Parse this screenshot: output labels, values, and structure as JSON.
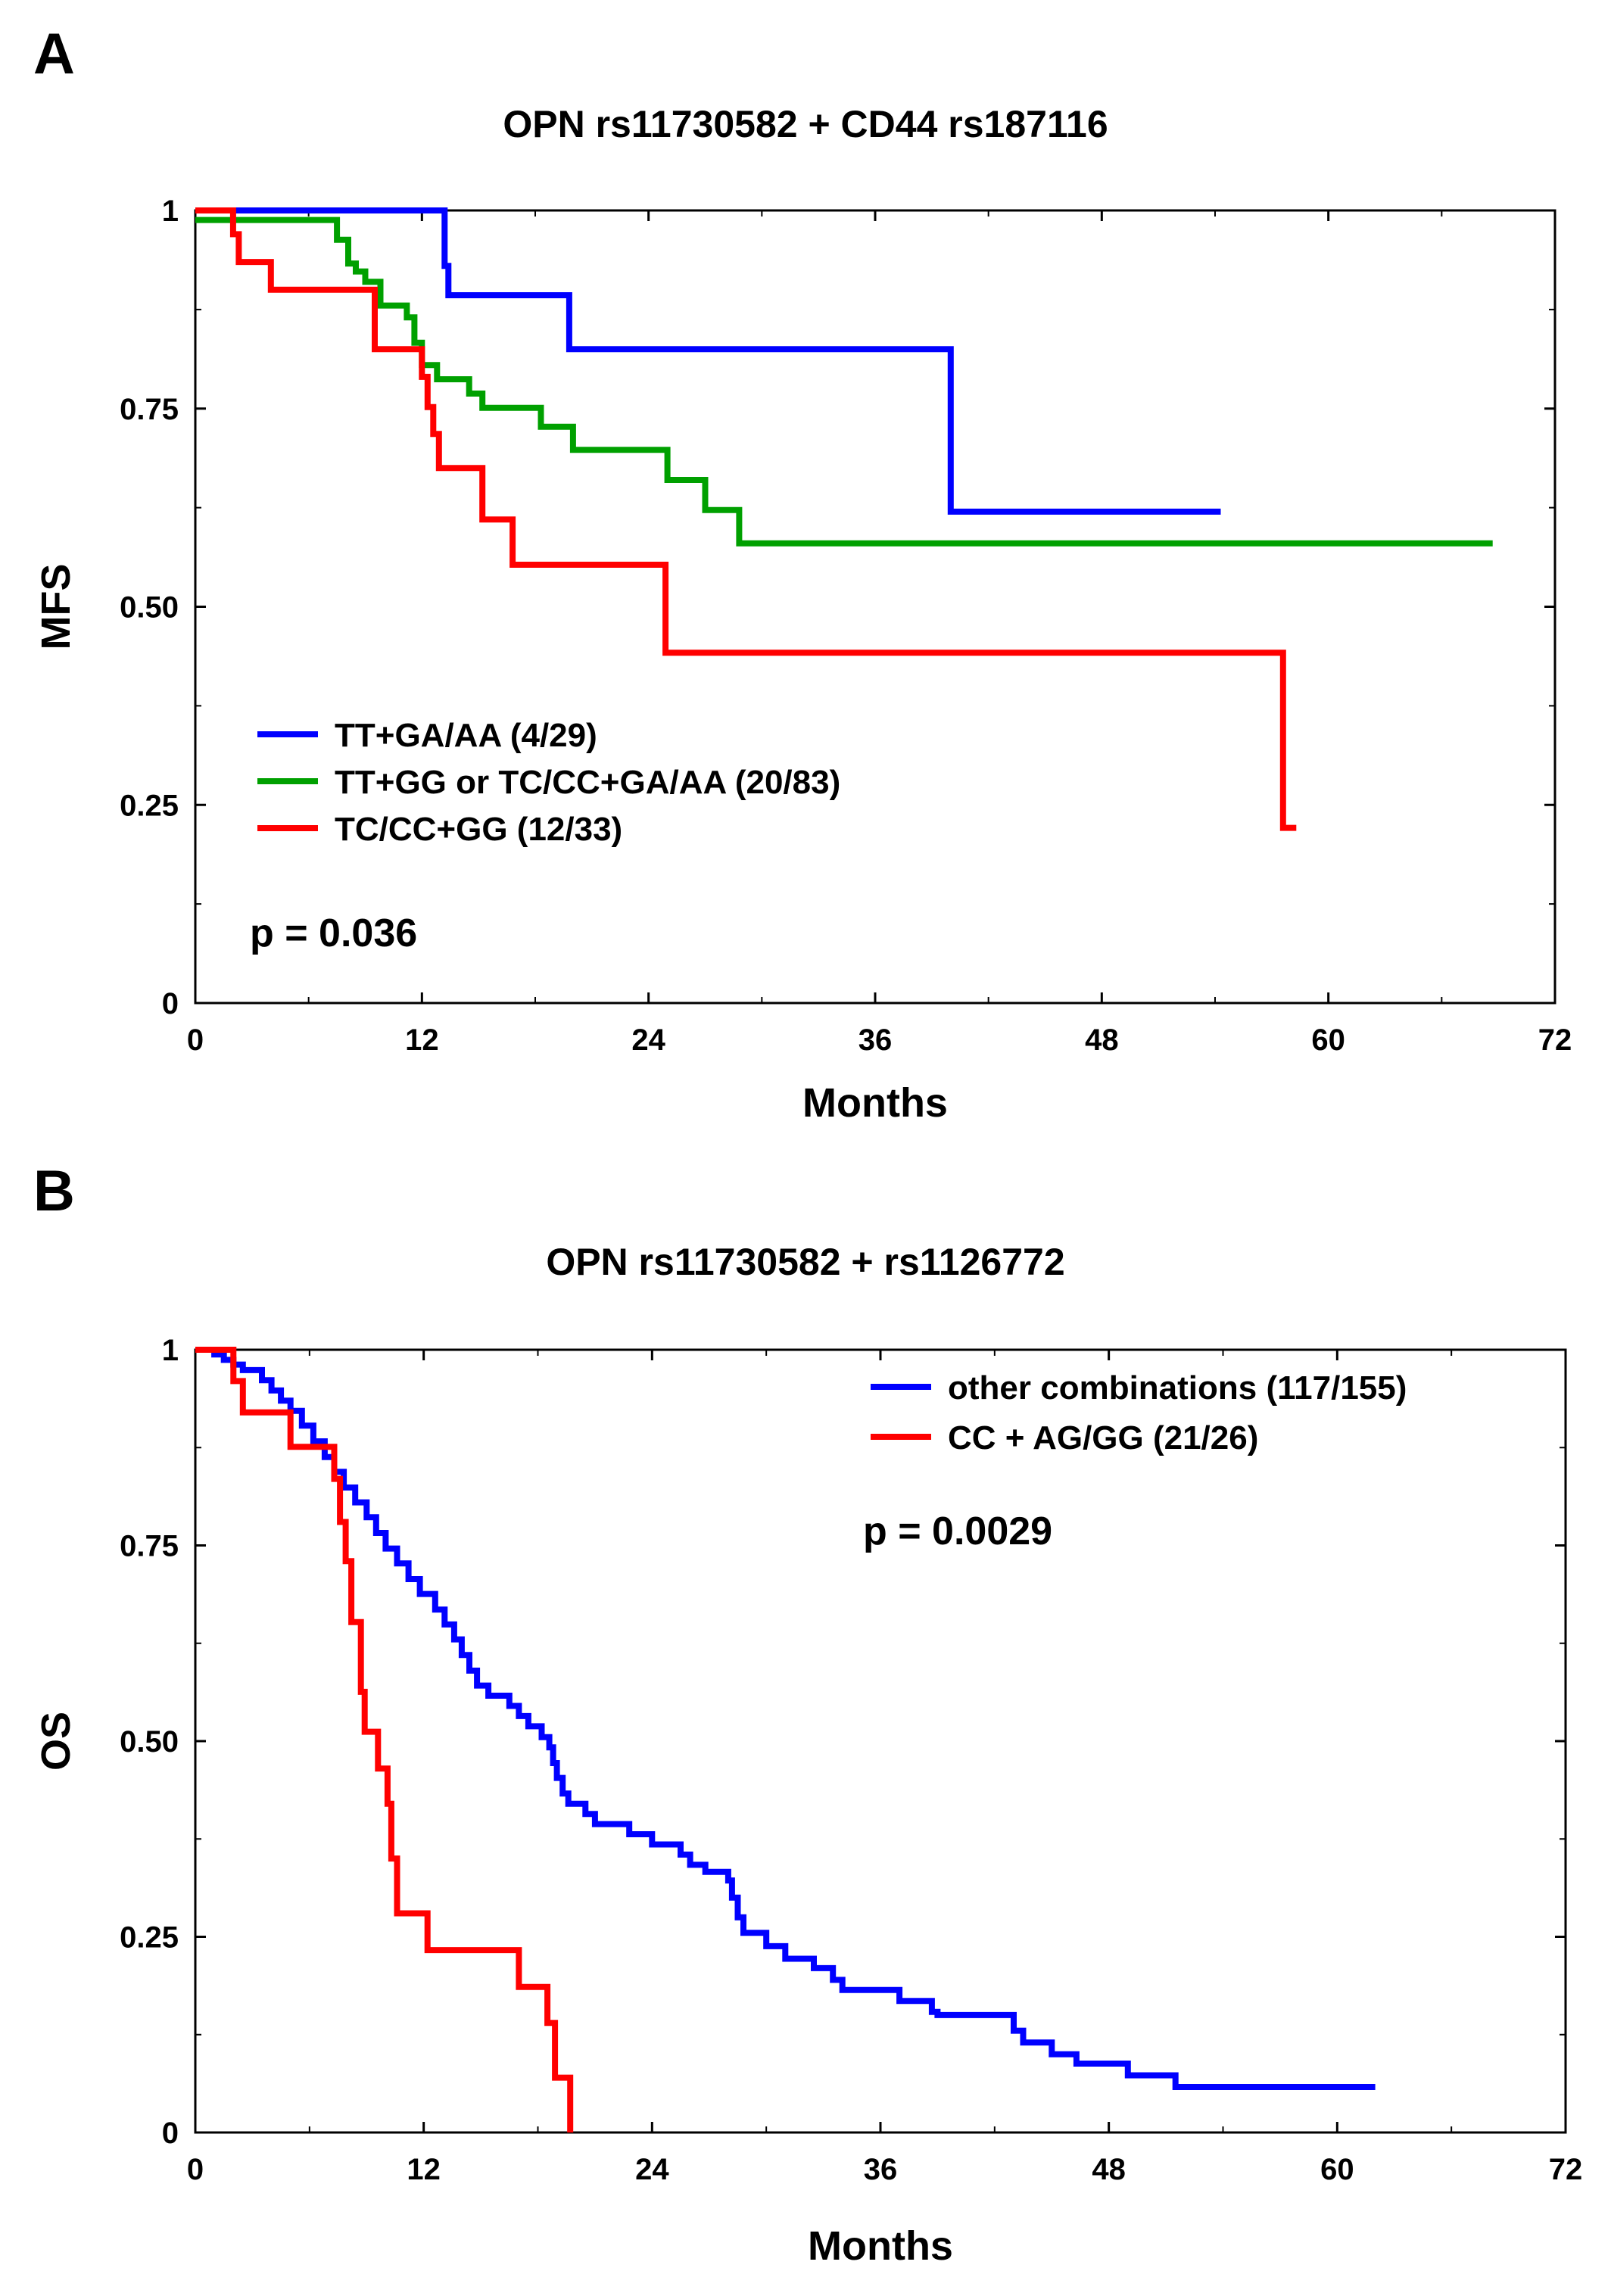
{
  "figure": {
    "panel_labels": [
      "A",
      "B"
    ]
  },
  "chart_data": [
    {
      "type": "line",
      "step": true,
      "panel": "A",
      "title": "OPN rs11730582 + CD44 rs187116",
      "xlabel": "Months",
      "ylabel": "MFS",
      "xlim": [
        0,
        72
      ],
      "ylim": [
        0,
        1
      ],
      "xticks": [
        0,
        12,
        24,
        36,
        48,
        60,
        72
      ],
      "xtick_labels": [
        "0",
        "12",
        "24",
        "36",
        "48",
        "60",
        "72"
      ],
      "yticks": [
        0,
        0.25,
        0.5,
        0.75,
        1
      ],
      "ytick_labels": [
        "0",
        "0.25",
        "0.50",
        "0.75",
        "1"
      ],
      "legend_position": "lower-left",
      "annotation": "p = 0.036",
      "series": [
        {
          "name": "TT+GA/AA (4/29)",
          "color": "#0000ff",
          "points": [
            [
              0,
              1
            ],
            [
              13.2,
              1
            ],
            [
              13.2,
              0.93
            ],
            [
              13.4,
              0.93
            ],
            [
              13.4,
              0.893
            ],
            [
              19.8,
              0.893
            ],
            [
              19.8,
              0.825
            ],
            [
              40,
              0.825
            ],
            [
              40,
              0.62
            ],
            [
              54.3,
              0.62
            ]
          ]
        },
        {
          "name": "TT+GG or TC/CC+GA/AA (20/83)",
          "color": "#00a000",
          "points": [
            [
              0,
              0.988
            ],
            [
              7.5,
              0.988
            ],
            [
              7.5,
              0.963
            ],
            [
              8.1,
              0.963
            ],
            [
              8.1,
              0.933
            ],
            [
              8.5,
              0.933
            ],
            [
              8.5,
              0.923
            ],
            [
              9,
              0.923
            ],
            [
              9,
              0.91
            ],
            [
              9.8,
              0.91
            ],
            [
              9.8,
              0.88
            ],
            [
              11.2,
              0.88
            ],
            [
              11.2,
              0.865
            ],
            [
              11.6,
              0.865
            ],
            [
              11.6,
              0.833
            ],
            [
              12,
              0.833
            ],
            [
              12,
              0.805
            ],
            [
              12.8,
              0.805
            ],
            [
              12.8,
              0.787
            ],
            [
              14.5,
              0.787
            ],
            [
              14.5,
              0.769
            ],
            [
              15.2,
              0.769
            ],
            [
              15.2,
              0.751
            ],
            [
              18.3,
              0.751
            ],
            [
              18.3,
              0.727
            ],
            [
              20,
              0.727
            ],
            [
              20,
              0.698
            ],
            [
              25,
              0.698
            ],
            [
              25,
              0.66
            ],
            [
              27,
              0.66
            ],
            [
              27,
              0.622
            ],
            [
              28.8,
              0.622
            ],
            [
              28.8,
              0.58
            ],
            [
              68.7,
              0.58
            ]
          ]
        },
        {
          "name": "TC/CC+GG (12/33)",
          "color": "#ff0000",
          "points": [
            [
              0,
              1
            ],
            [
              2,
              1
            ],
            [
              2,
              0.97
            ],
            [
              2.3,
              0.97
            ],
            [
              2.3,
              0.935
            ],
            [
              4,
              0.935
            ],
            [
              4,
              0.9
            ],
            [
              9.5,
              0.9
            ],
            [
              9.5,
              0.825
            ],
            [
              12,
              0.825
            ],
            [
              12,
              0.79
            ],
            [
              12.3,
              0.79
            ],
            [
              12.3,
              0.752
            ],
            [
              12.6,
              0.752
            ],
            [
              12.6,
              0.718
            ],
            [
              12.9,
              0.718
            ],
            [
              12.9,
              0.675
            ],
            [
              15.2,
              0.675
            ],
            [
              15.2,
              0.61
            ],
            [
              16.8,
              0.61
            ],
            [
              16.8,
              0.553
            ],
            [
              24.9,
              0.553
            ],
            [
              24.9,
              0.442
            ],
            [
              57.6,
              0.442
            ],
            [
              57.6,
              0.221
            ],
            [
              58.3,
              0.221
            ]
          ]
        }
      ]
    },
    {
      "type": "line",
      "step": true,
      "panel": "B",
      "title": "OPN rs11730582 + rs1126772",
      "xlabel": "Months",
      "ylabel": "OS",
      "xlim": [
        0,
        72
      ],
      "ylim": [
        0,
        1
      ],
      "xticks": [
        0,
        12,
        24,
        36,
        48,
        60,
        72
      ],
      "xtick_labels": [
        "0",
        "12",
        "24",
        "36",
        "48",
        "60",
        "72"
      ],
      "yticks": [
        0,
        0.25,
        0.5,
        0.75,
        1
      ],
      "ytick_labels": [
        "0",
        "0.25",
        "0.50",
        "0.75",
        "1"
      ],
      "legend_position": "top-right",
      "annotation": "p = 0.0029",
      "series": [
        {
          "name": "other combinations (117/155)",
          "color": "#0000ff",
          "points": [
            [
              0,
              1
            ],
            [
              1,
              1
            ],
            [
              1,
              0.994
            ],
            [
              1.5,
              0.994
            ],
            [
              1.5,
              0.987
            ],
            [
              2,
              0.987
            ],
            [
              2,
              0.981
            ],
            [
              2.5,
              0.981
            ],
            [
              2.5,
              0.974
            ],
            [
              3.5,
              0.974
            ],
            [
              3.5,
              0.961
            ],
            [
              4,
              0.961
            ],
            [
              4,
              0.948
            ],
            [
              4.5,
              0.948
            ],
            [
              4.5,
              0.935
            ],
            [
              5,
              0.935
            ],
            [
              5,
              0.922
            ],
            [
              5.6,
              0.922
            ],
            [
              5.6,
              0.903
            ],
            [
              6.2,
              0.903
            ],
            [
              6.2,
              0.883
            ],
            [
              6.8,
              0.883
            ],
            [
              6.8,
              0.863
            ],
            [
              7.3,
              0.863
            ],
            [
              7.3,
              0.844
            ],
            [
              7.8,
              0.844
            ],
            [
              7.8,
              0.824
            ],
            [
              8.4,
              0.824
            ],
            [
              8.4,
              0.805
            ],
            [
              9,
              0.805
            ],
            [
              9,
              0.786
            ],
            [
              9.5,
              0.786
            ],
            [
              9.5,
              0.766
            ],
            [
              10,
              0.766
            ],
            [
              10,
              0.746
            ],
            [
              10.6,
              0.746
            ],
            [
              10.6,
              0.727
            ],
            [
              11.2,
              0.727
            ],
            [
              11.2,
              0.707
            ],
            [
              11.8,
              0.707
            ],
            [
              11.8,
              0.688
            ],
            [
              12.6,
              0.688
            ],
            [
              12.6,
              0.668
            ],
            [
              13.1,
              0.668
            ],
            [
              13.1,
              0.649
            ],
            [
              13.6,
              0.649
            ],
            [
              13.6,
              0.63
            ],
            [
              14,
              0.63
            ],
            [
              14,
              0.61
            ],
            [
              14.4,
              0.61
            ],
            [
              14.4,
              0.59
            ],
            [
              14.8,
              0.59
            ],
            [
              14.8,
              0.571
            ],
            [
              15.4,
              0.571
            ],
            [
              15.4,
              0.558
            ],
            [
              16.5,
              0.558
            ],
            [
              16.5,
              0.545
            ],
            [
              17,
              0.545
            ],
            [
              17,
              0.532
            ],
            [
              17.5,
              0.532
            ],
            [
              17.5,
              0.519
            ],
            [
              18.2,
              0.519
            ],
            [
              18.2,
              0.505
            ],
            [
              18.6,
              0.505
            ],
            [
              18.6,
              0.492
            ],
            [
              18.8,
              0.492
            ],
            [
              18.8,
              0.472
            ],
            [
              19,
              0.472
            ],
            [
              19,
              0.453
            ],
            [
              19.3,
              0.453
            ],
            [
              19.3,
              0.433
            ],
            [
              19.6,
              0.433
            ],
            [
              19.6,
              0.42
            ],
            [
              20.5,
              0.42
            ],
            [
              20.5,
              0.407
            ],
            [
              21,
              0.407
            ],
            [
              21,
              0.394
            ],
            [
              22.8,
              0.394
            ],
            [
              22.8,
              0.381
            ],
            [
              24,
              0.381
            ],
            [
              24,
              0.368
            ],
            [
              25.5,
              0.368
            ],
            [
              25.5,
              0.355
            ],
            [
              26,
              0.355
            ],
            [
              26,
              0.342
            ],
            [
              26.8,
              0.342
            ],
            [
              26.8,
              0.333
            ],
            [
              28,
              0.333
            ],
            [
              28,
              0.322
            ],
            [
              28.2,
              0.322
            ],
            [
              28.2,
              0.3
            ],
            [
              28.5,
              0.3
            ],
            [
              28.5,
              0.275
            ],
            [
              28.8,
              0.275
            ],
            [
              28.8,
              0.255
            ],
            [
              30,
              0.255
            ],
            [
              30,
              0.238
            ],
            [
              31,
              0.238
            ],
            [
              31,
              0.222
            ],
            [
              32.5,
              0.222
            ],
            [
              32.5,
              0.21
            ],
            [
              33.5,
              0.21
            ],
            [
              33.5,
              0.195
            ],
            [
              34,
              0.195
            ],
            [
              34,
              0.182
            ],
            [
              37,
              0.182
            ],
            [
              37,
              0.168
            ],
            [
              38.7,
              0.168
            ],
            [
              38.7,
              0.154
            ],
            [
              39,
              0.154
            ],
            [
              39,
              0.15
            ],
            [
              43,
              0.15
            ],
            [
              43,
              0.13
            ],
            [
              43.5,
              0.13
            ],
            [
              43.5,
              0.115
            ],
            [
              45,
              0.115
            ],
            [
              45,
              0.1
            ],
            [
              46.3,
              0.1
            ],
            [
              46.3,
              0.088
            ],
            [
              49,
              0.088
            ],
            [
              49,
              0.073
            ],
            [
              51.5,
              0.073
            ],
            [
              51.5,
              0.058
            ],
            [
              62,
              0.058
            ]
          ]
        },
        {
          "name": "CC + AG/GG (21/26)",
          "color": "#ff0000",
          "points": [
            [
              0,
              1
            ],
            [
              2,
              1
            ],
            [
              2,
              0.96
            ],
            [
              2.5,
              0.96
            ],
            [
              2.5,
              0.92
            ],
            [
              5,
              0.92
            ],
            [
              5,
              0.876
            ],
            [
              7.3,
              0.876
            ],
            [
              7.3,
              0.835
            ],
            [
              7.6,
              0.835
            ],
            [
              7.6,
              0.78
            ],
            [
              7.9,
              0.78
            ],
            [
              7.9,
              0.73
            ],
            [
              8.2,
              0.73
            ],
            [
              8.2,
              0.652
            ],
            [
              8.7,
              0.652
            ],
            [
              8.7,
              0.563
            ],
            [
              8.9,
              0.563
            ],
            [
              8.9,
              0.512
            ],
            [
              9.6,
              0.512
            ],
            [
              9.6,
              0.465
            ],
            [
              10.1,
              0.465
            ],
            [
              10.1,
              0.42
            ],
            [
              10.3,
              0.42
            ],
            [
              10.3,
              0.35
            ],
            [
              10.6,
              0.35
            ],
            [
              10.6,
              0.28
            ],
            [
              12.2,
              0.28
            ],
            [
              12.2,
              0.233
            ],
            [
              17,
              0.233
            ],
            [
              17,
              0.186
            ],
            [
              18.5,
              0.186
            ],
            [
              18.5,
              0.14
            ],
            [
              18.9,
              0.14
            ],
            [
              18.9,
              0.07
            ],
            [
              19.7,
              0.07
            ],
            [
              19.7,
              0
            ]
          ]
        }
      ]
    }
  ]
}
